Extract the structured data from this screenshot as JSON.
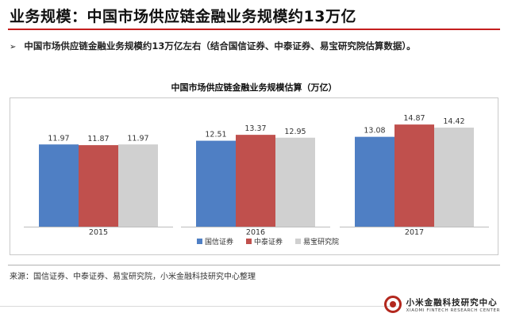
{
  "header": {
    "title": "业务规模：中国市场供应链金融业务规模约13万亿"
  },
  "bullet": {
    "marker": "➢",
    "text": "中国市场供应链金融业务规模约13万亿左右（结合国信证券、中泰证券、易宝研究院估算数据）。"
  },
  "footer": {
    "source": "来源：国信证券、中泰证券、易宝研究院，小米金融科技研究中心整理",
    "logo_cn": "小米金融科技研究中心",
    "logo_en": "XIAOMI FINTECH RESEARCH CENTER"
  },
  "colors": {
    "title_rule": "#c41e1e",
    "series_1": "#4f7fc4",
    "series_2": "#c0504d",
    "series_3": "#d0d0d0"
  },
  "chart_data": {
    "type": "bar",
    "title": "中国市场供应链金融业务规模估算（万亿）",
    "categories": [
      "2015",
      "2016",
      "2017"
    ],
    "series": [
      {
        "name": "国信证券",
        "values": [
          11.97,
          12.51,
          13.08
        ],
        "color": "#4f7fc4"
      },
      {
        "name": "中泰证券",
        "values": [
          11.87,
          13.37,
          14.87
        ],
        "color": "#c0504d"
      },
      {
        "name": "易宝研究院",
        "values": [
          11.97,
          12.95,
          14.42
        ],
        "color": "#d0d0d0"
      }
    ],
    "ylim": [
      0,
      18
    ],
    "grid": false,
    "legend": "bottom-center",
    "data_labels": true
  }
}
